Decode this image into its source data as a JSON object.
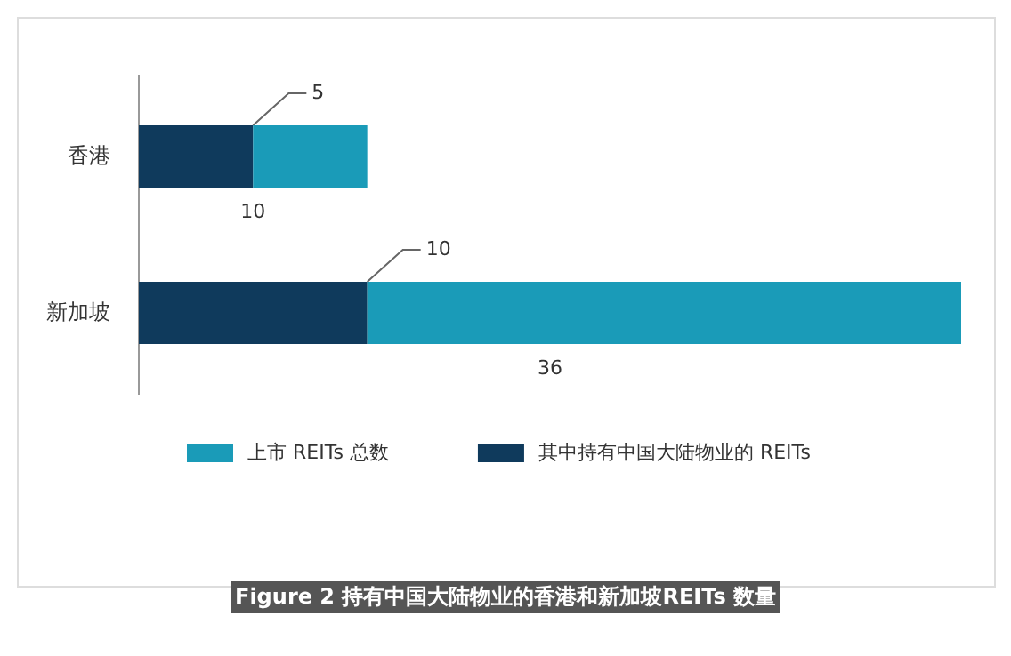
{
  "chart_data": {
    "type": "bar",
    "orientation": "horizontal",
    "stacked": true,
    "categories": [
      "香港",
      "新加坡"
    ],
    "series": [
      {
        "name": "其中持有中国大陆物业的 REITs",
        "color": "#0f3a5c",
        "values": [
          5,
          10
        ],
        "value_labels": [
          "5",
          "10"
        ]
      },
      {
        "name": "上市 REITs 总数",
        "color": "#1a9bb8",
        "values": [
          5,
          26
        ]
      }
    ],
    "totals": [
      "10",
      "36"
    ],
    "xlim": [
      0,
      36
    ],
    "legend": "bottom",
    "annotations": [
      "Figure 2 持有中国大陆物业的香港和新加坡REITs 数量"
    ]
  }
}
